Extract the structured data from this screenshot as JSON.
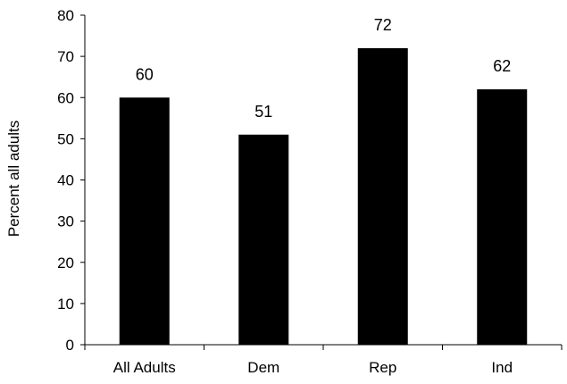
{
  "chart_data": {
    "type": "bar",
    "categories": [
      "All Adults",
      "Dem",
      "Rep",
      "Ind"
    ],
    "values": [
      60,
      51,
      72,
      62
    ],
    "value_labels": [
      "60",
      "51",
      "72",
      "62"
    ],
    "title": "",
    "xlabel": "",
    "ylabel": "Percent all adults",
    "ylim": [
      0,
      80
    ],
    "yticks": [
      0,
      10,
      20,
      30,
      40,
      50,
      60,
      70,
      80
    ],
    "ytick_labels": [
      "0",
      "10",
      "20",
      "30",
      "40",
      "50",
      "60",
      "70",
      "80"
    ],
    "grid": false,
    "legend": "none",
    "bar_color": "#000000",
    "axis_color": "#000000"
  }
}
